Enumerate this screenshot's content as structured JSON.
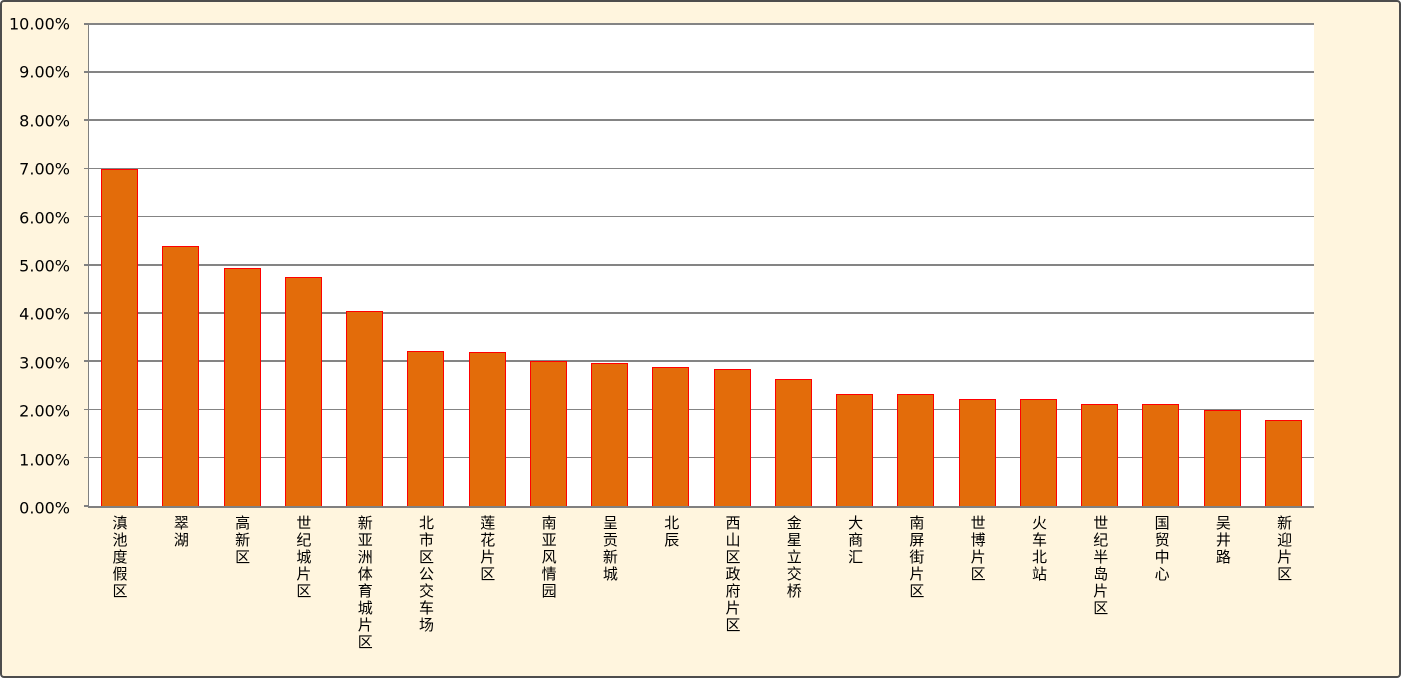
{
  "chart_data": {
    "type": "bar",
    "title": "",
    "categories": [
      "滇池度假区",
      "翠湖",
      "高新区",
      "世纪城片区",
      "新亚洲体育城片区",
      "北市区公交车场",
      "莲花片区",
      "南亚风情园",
      "呈贡新城",
      "北辰",
      "西山区政府片区",
      "金星立交桥",
      "大商汇",
      "南屏街片区",
      "世博片区",
      "火车北站",
      "世纪半岛片区",
      "国贸中心",
      "吴井路",
      "新迎片区"
    ],
    "values": [
      7.0,
      5.4,
      4.93,
      4.75,
      4.04,
      3.22,
      3.2,
      3.0,
      2.96,
      2.88,
      2.84,
      2.63,
      2.33,
      2.32,
      2.23,
      2.21,
      2.12,
      2.11,
      2.0,
      1.78
    ],
    "value_unit": "%",
    "xlabel": "",
    "ylabel": "",
    "ylim": [
      0,
      10
    ],
    "y_tick_step": 1,
    "y_ticks_top_to_bottom": [
      "10.00%",
      "9.00%",
      "8.00%",
      "7.00%",
      "6.00%",
      "5.00%",
      "4.00%",
      "3.00%",
      "2.00%",
      "1.00%",
      "0.00%"
    ],
    "grid": "horizontal",
    "legend": "none",
    "colors": {
      "bar_fill": "#E36C0A",
      "bar_border": "#FF0000",
      "frame_background": "#FFF5DE",
      "plot_background": "#FFFFFF",
      "gridline": "#848484",
      "axis_line": "#808080",
      "text": "#000000",
      "outer_border": "#4D4D4D"
    }
  }
}
